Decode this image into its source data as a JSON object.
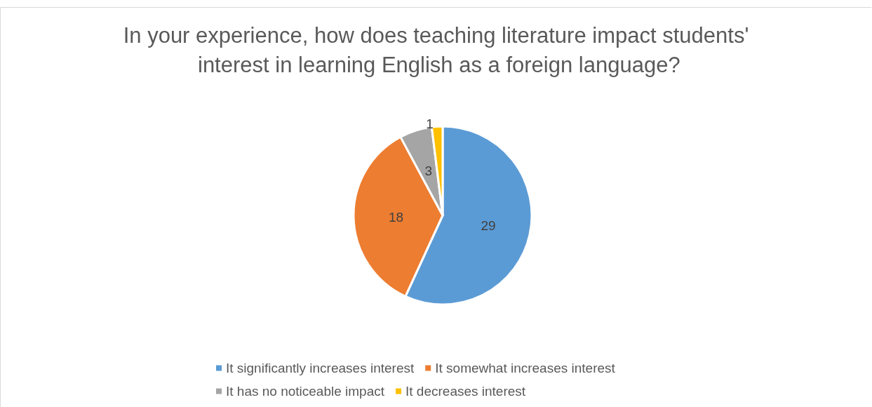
{
  "chart_data": {
    "type": "pie",
    "title": "In your experience, how does teaching literature impact students' interest in learning English as a foreign language?",
    "categories": [
      "It significantly increases interest",
      "It somewhat increases interest",
      "It has no noticeable impact",
      "It decreases interest"
    ],
    "values": [
      29,
      18,
      3,
      1
    ],
    "colors": [
      "#5b9bd5",
      "#ed7d31",
      "#a5a5a5",
      "#ffc000"
    ],
    "data_labels": true,
    "legend": "bottom"
  }
}
